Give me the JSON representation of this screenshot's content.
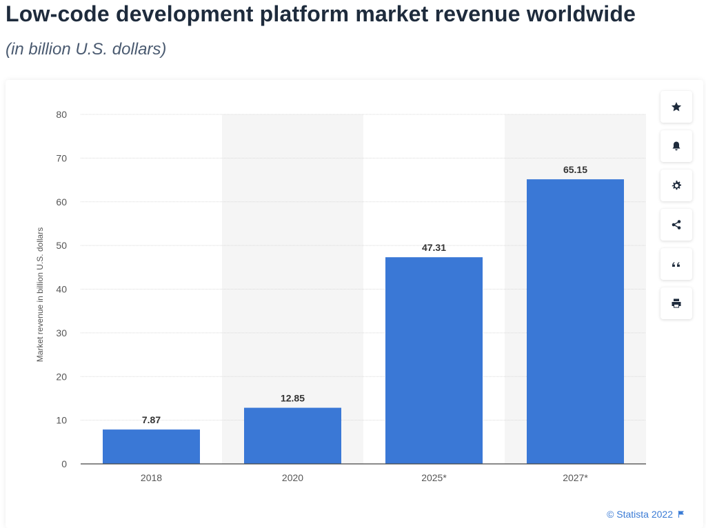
{
  "header": {
    "title": "Low-code development platform market revenue worldwide",
    "subtitle": "(in billion U.S. dollars)"
  },
  "toolbar": {
    "buttons": [
      {
        "name": "bookmark-button",
        "icon": "star-icon"
      },
      {
        "name": "notification-button",
        "icon": "bell-icon"
      },
      {
        "name": "settings-button",
        "icon": "gear-icon"
      },
      {
        "name": "share-button",
        "icon": "share-icon"
      },
      {
        "name": "cite-button",
        "icon": "quote-icon"
      },
      {
        "name": "print-button",
        "icon": "print-icon"
      }
    ]
  },
  "footer": {
    "credit": "© Statista 2022"
  },
  "colors": {
    "bar": "#3a78d6",
    "alt_band": "#f5f5f5",
    "grid": "#d9d9d9",
    "text": "#333333"
  },
  "chart_data": {
    "type": "bar",
    "categories": [
      "2018",
      "2020",
      "2025*",
      "2027*"
    ],
    "values": [
      7.87,
      12.85,
      47.31,
      65.15
    ],
    "value_labels": [
      "7.87",
      "12.85",
      "47.31",
      "65.15"
    ],
    "ylabel": "Market revenue in billion U.S. dollars",
    "xlabel": "",
    "ylim": [
      0,
      80
    ],
    "yticks": [
      0,
      10,
      20,
      30,
      40,
      50,
      60,
      70,
      80
    ],
    "grid": true
  }
}
